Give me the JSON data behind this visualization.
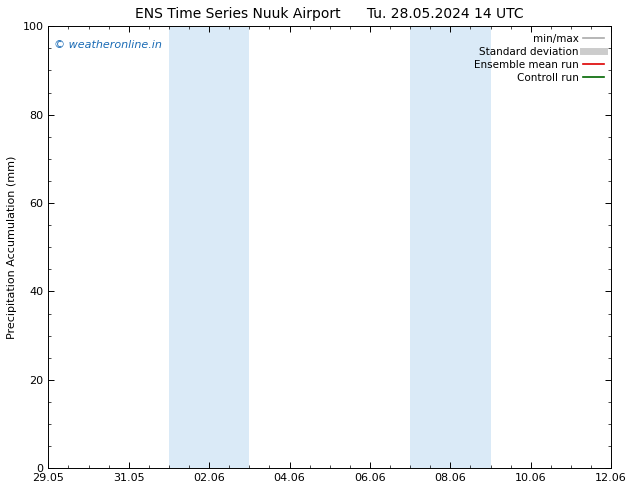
{
  "title_left": "ENS Time Series Nuuk Airport",
  "title_right": "Tu. 28.05.2024 14 UTC",
  "ylabel": "Precipitation Accumulation (mm)",
  "ylim": [
    0,
    100
  ],
  "yticks": [
    0,
    20,
    40,
    60,
    80,
    100
  ],
  "x_tick_labels": [
    "29.05",
    "31.05",
    "02.06",
    "04.06",
    "06.06",
    "08.06",
    "10.06",
    "12.06"
  ],
  "x_tick_positions": [
    0,
    2,
    4,
    6,
    8,
    10,
    12,
    14
  ],
  "xlim": [
    0,
    14
  ],
  "shaded_bands": [
    {
      "start": 3.0,
      "end": 5.0
    },
    {
      "start": 9.0,
      "end": 11.0
    }
  ],
  "shaded_color": "#daeaf7",
  "watermark_text": "© weatheronline.in",
  "watermark_color": "#1a6bb5",
  "legend_entries": [
    {
      "label": "min/max",
      "color": "#aaaaaa",
      "lw": 1.2
    },
    {
      "label": "Standard deviation",
      "color": "#cccccc",
      "lw": 5.0
    },
    {
      "label": "Ensemble mean run",
      "color": "#dd0000",
      "lw": 1.2
    },
    {
      "label": "Controll run",
      "color": "#006600",
      "lw": 1.2
    }
  ],
  "bg_color": "#ffffff",
  "axes_color": "#000000",
  "tick_font_size": 8,
  "ylabel_font_size": 8,
  "title_font_size": 10,
  "watermark_font_size": 8,
  "legend_font_size": 7.5
}
